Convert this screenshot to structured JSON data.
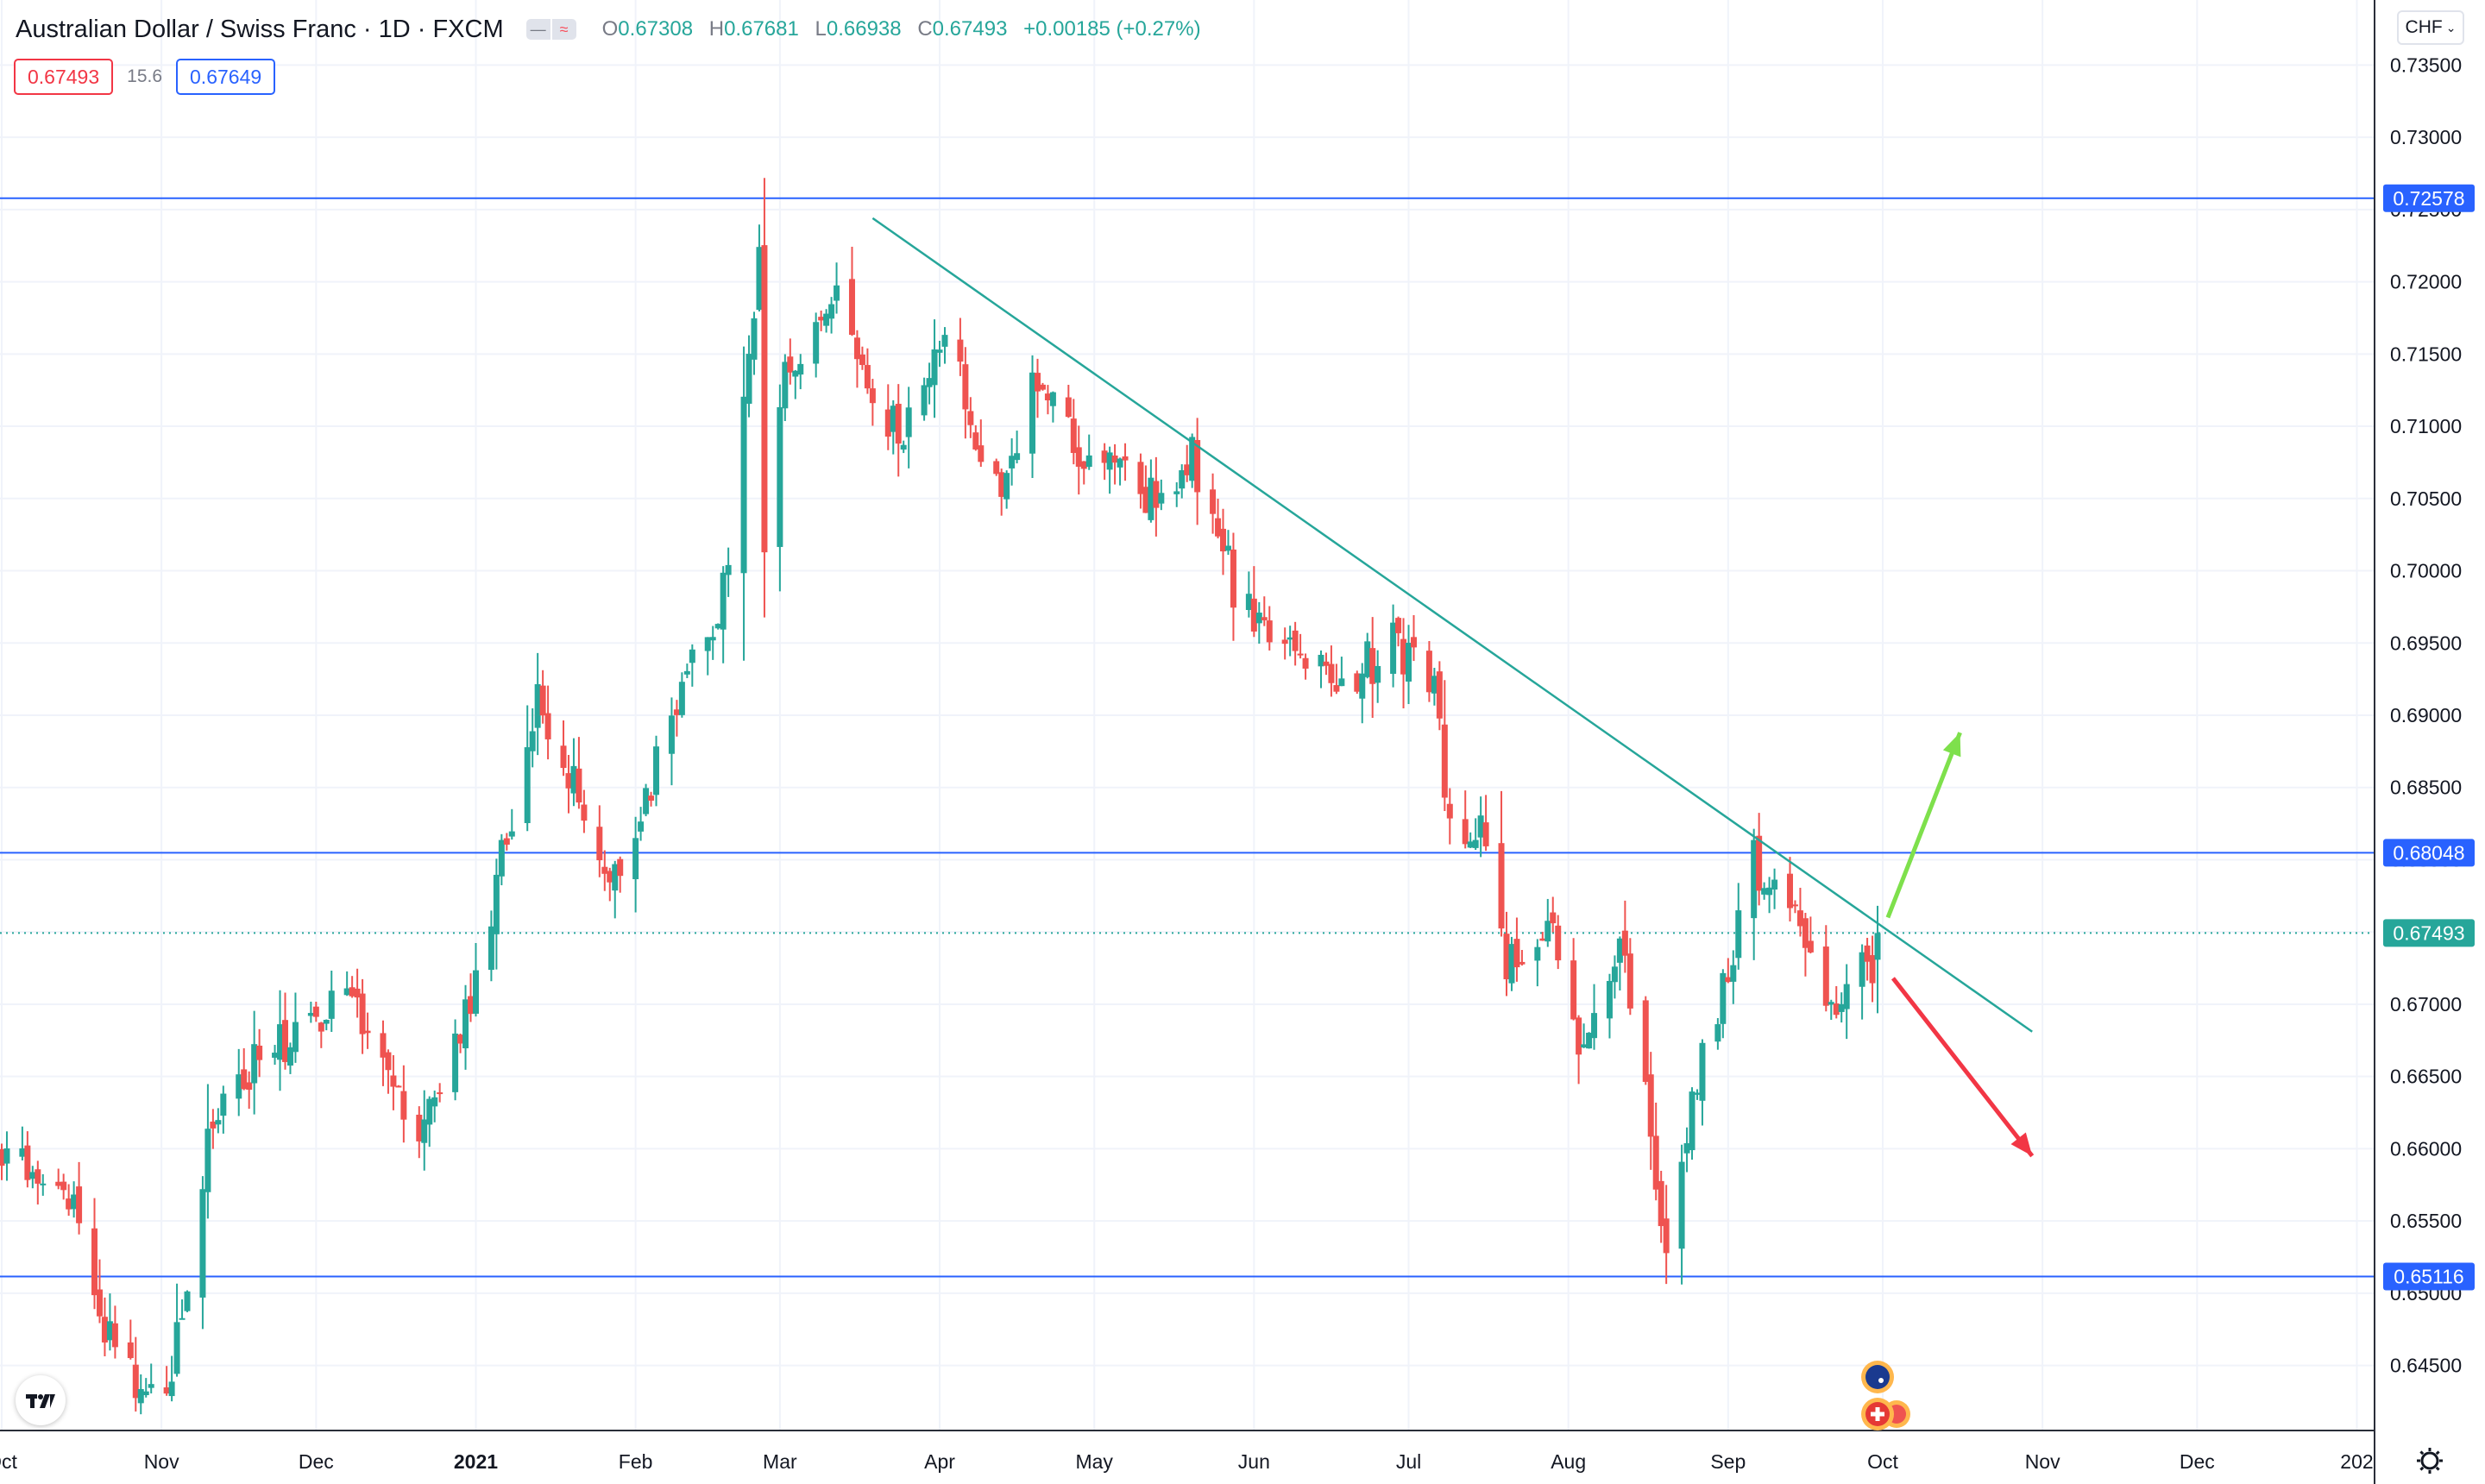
{
  "legend": {
    "symbol": "Australian Dollar / Swiss Franc · 1D · FXCM",
    "pill_a": "—",
    "pill_b": "≈",
    "o_label": "O",
    "o_value": "0.67308",
    "h_label": "H",
    "h_value": "0.67681",
    "l_label": "L",
    "l_value": "0.66938",
    "c_label": "C",
    "c_value": "0.67493",
    "change": "+0.00185 (+0.27%)"
  },
  "quote": {
    "bid": "0.67493",
    "spread": "15.6",
    "ask": "0.67649"
  },
  "currency_button": "CHF",
  "chart_data": {
    "type": "candlestick",
    "title": "Australian Dollar / Swiss Franc · 1D · FXCM",
    "xlabel": "",
    "ylabel": "",
    "ylim": [
      0.6405,
      0.7395
    ],
    "y_ticks": [
      "0.73500",
      "0.73000",
      "0.72500",
      "0.72000",
      "0.71500",
      "0.71000",
      "0.70500",
      "0.70000",
      "0.69500",
      "0.69000",
      "0.68500",
      "0.68000",
      "0.67500",
      "0.67000",
      "0.66500",
      "0.66000",
      "0.65500",
      "0.65000",
      "0.64500"
    ],
    "x_ticks": [
      "Oct",
      "Nov",
      "Dec",
      "2021",
      "Feb",
      "Mar",
      "Apr",
      "May",
      "Jun",
      "Jul",
      "Aug",
      "Sep",
      "Oct",
      "Nov",
      "Dec",
      "202"
    ],
    "grid": true,
    "horizontal_lines": [
      {
        "label": "0.72578",
        "value": 0.72578,
        "color": "#2962ff"
      },
      {
        "label": "0.68048",
        "value": 0.68048,
        "color": "#2962ff"
      },
      {
        "label": "0.65116",
        "value": 0.65116,
        "color": "#2962ff"
      }
    ],
    "last_price": {
      "label": "0.67493",
      "value": 0.67493,
      "color": "#26a69a"
    },
    "trendline": {
      "from": {
        "date": "2021-03-19",
        "value": 0.7244
      },
      "to": {
        "date": "2021-10-30",
        "value": 0.6681
      },
      "color": "#26a69a"
    },
    "arrows": [
      {
        "direction": "up",
        "color": "#7ee04c",
        "from": {
          "date": "2021-10-02",
          "value": 0.676
        },
        "to": {
          "date": "2021-10-16",
          "value": 0.6888
        }
      },
      {
        "direction": "down",
        "color": "#f23645",
        "from": {
          "date": "2021-10-03",
          "value": 0.6718
        },
        "to": {
          "date": "2021-10-30",
          "value": 0.6595
        }
      }
    ],
    "candle_colors": {
      "up": "#26a69a",
      "down": "#ef5350"
    },
    "anchors": [
      {
        "date": "2020-10-01",
        "close": 0.66
      },
      {
        "date": "2020-10-14",
        "close": 0.6565
      },
      {
        "date": "2020-10-23",
        "close": 0.6455
      },
      {
        "date": "2020-11-02",
        "close": 0.642
      },
      {
        "date": "2020-11-10",
        "close": 0.661
      },
      {
        "date": "2020-11-17",
        "close": 0.665
      },
      {
        "date": "2020-11-27",
        "close": 0.668
      },
      {
        "date": "2020-12-08",
        "close": 0.67
      },
      {
        "date": "2020-12-21",
        "close": 0.6595
      },
      {
        "date": "2021-01-01",
        "close": 0.672
      },
      {
        "date": "2021-01-13",
        "close": 0.6905
      },
      {
        "date": "2021-01-22",
        "close": 0.6838
      },
      {
        "date": "2021-01-28",
        "close": 0.679
      },
      {
        "date": "2021-02-10",
        "close": 0.691
      },
      {
        "date": "2021-02-18",
        "close": 0.6985
      },
      {
        "date": "2021-02-25",
        "close": 0.722
      },
      {
        "date": "2021-02-26",
        "close": 0.7
      },
      {
        "date": "2021-03-02",
        "close": 0.714
      },
      {
        "date": "2021-03-11",
        "close": 0.719
      },
      {
        "date": "2021-03-19",
        "close": 0.712
      },
      {
        "date": "2021-03-25",
        "close": 0.7095
      },
      {
        "date": "2021-04-02",
        "close": 0.7165
      },
      {
        "date": "2021-04-13",
        "close": 0.7045
      },
      {
        "date": "2021-04-19",
        "close": 0.714
      },
      {
        "date": "2021-04-30",
        "close": 0.7075
      },
      {
        "date": "2021-05-12",
        "close": 0.705
      },
      {
        "date": "2021-05-20",
        "close": 0.708
      },
      {
        "date": "2021-05-28",
        "close": 0.699
      },
      {
        "date": "2021-06-07",
        "close": 0.694
      },
      {
        "date": "2021-06-18",
        "close": 0.692
      },
      {
        "date": "2021-06-28",
        "close": 0.695
      },
      {
        "date": "2021-07-06",
        "close": 0.693
      },
      {
        "date": "2021-07-09",
        "close": 0.682
      },
      {
        "date": "2021-07-15",
        "close": 0.683
      },
      {
        "date": "2021-07-20",
        "close": 0.672
      },
      {
        "date": "2021-07-28",
        "close": 0.676
      },
      {
        "date": "2021-08-04",
        "close": 0.666
      },
      {
        "date": "2021-08-11",
        "close": 0.6755
      },
      {
        "date": "2021-08-20",
        "close": 0.653
      },
      {
        "date": "2021-08-27",
        "close": 0.666
      },
      {
        "date": "2021-09-06",
        "close": 0.68
      },
      {
        "date": "2021-09-15",
        "close": 0.675
      },
      {
        "date": "2021-09-21",
        "close": 0.669
      },
      {
        "date": "2021-09-29",
        "close": 0.6731
      },
      {
        "date": "2021-09-30",
        "close": 0.6749
      }
    ],
    "last_candle": {
      "date": "2021-09-30",
      "open": 0.67308,
      "high": 0.67681,
      "low": 0.66938,
      "close": 0.67493
    }
  }
}
